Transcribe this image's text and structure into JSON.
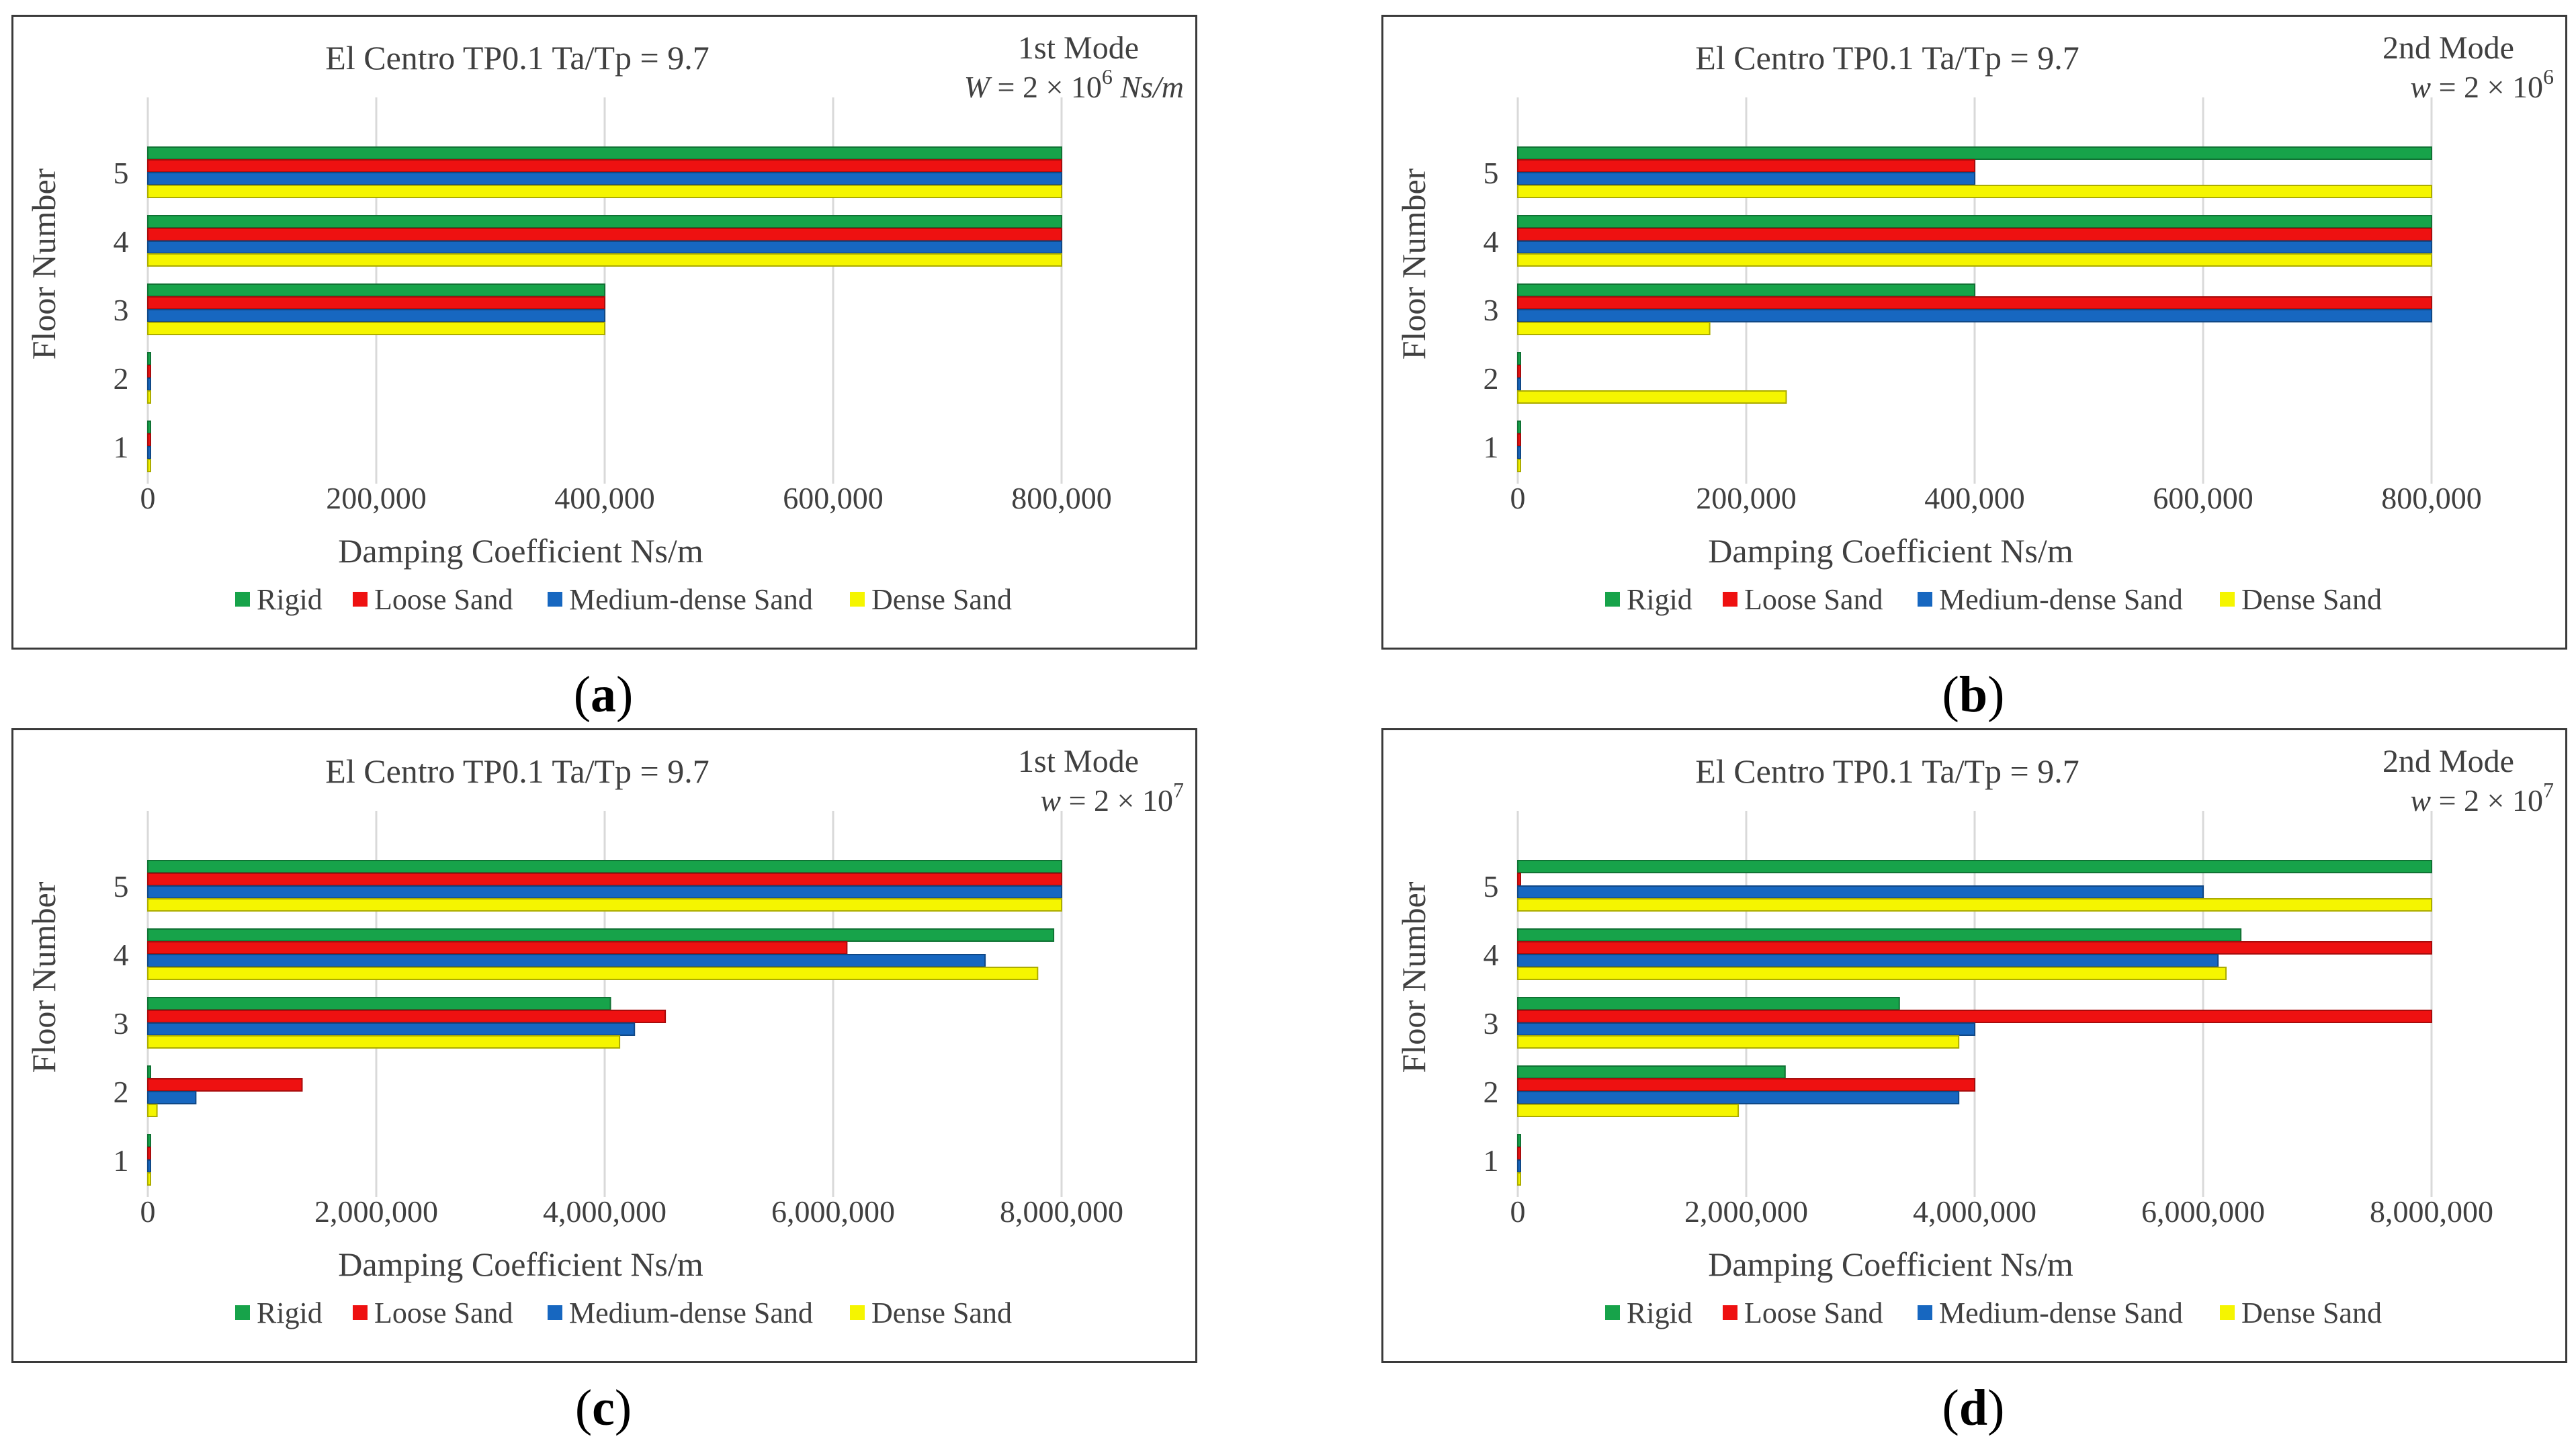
{
  "figure": {
    "captions": [
      "a",
      "b",
      "c",
      "d"
    ]
  },
  "colors": {
    "Rigid": "#17a34a",
    "Loose Sand": "#ee1111",
    "Medium-dense Sand": "#1767c0",
    "Dense Sand": "#f5f500",
    "grid": "#d9d9d9",
    "text": "#404040"
  },
  "chart_data": [
    {
      "type": "bar",
      "orientation": "horizontal",
      "title": "El Centro TP0.1  Ta/Tp = 9.7",
      "mode_label": "1st Mode",
      "mode_formula": "W = 2 × 10^6 Ns/m",
      "formula_parts": {
        "var": "W",
        "base": " = 2 × 10",
        "exp": "6",
        "unit": " Ns/m"
      },
      "xlabel": "Damping Coefficient Ns/m",
      "ylabel": "Floor Number",
      "categories": [
        "1",
        "2",
        "3",
        "4",
        "5"
      ],
      "xlim": [
        0,
        800000
      ],
      "xticks": [
        0,
        200000,
        400000,
        600000,
        800000
      ],
      "xtick_labels": [
        "0",
        "200,000",
        "400,000",
        "600,000",
        "800,000"
      ],
      "series": [
        {
          "name": "Rigid",
          "values": [
            2000,
            2000,
            400000,
            800000,
            800000
          ]
        },
        {
          "name": "Loose Sand",
          "values": [
            2000,
            2000,
            400000,
            800000,
            800000
          ]
        },
        {
          "name": "Medium-dense Sand",
          "values": [
            2000,
            2000,
            400000,
            800000,
            800000
          ]
        },
        {
          "name": "Dense Sand",
          "values": [
            2000,
            2000,
            400000,
            800000,
            800000
          ]
        }
      ],
      "legend": [
        "Rigid",
        "Loose Sand",
        "Medium-dense Sand",
        "Dense Sand"
      ]
    },
    {
      "type": "bar",
      "orientation": "horizontal",
      "title": "El Centro TP0.1  Ta/Tp = 9.7",
      "mode_label": "2nd Mode",
      "mode_formula": "w = 2 × 10^6",
      "formula_parts": {
        "var": "w",
        "base": " = 2 × 10",
        "exp": "6",
        "unit": ""
      },
      "xlabel": "Damping Coefficient Ns/m",
      "ylabel": "Floor Number",
      "categories": [
        "1",
        "2",
        "3",
        "4",
        "5"
      ],
      "xlim": [
        0,
        800000
      ],
      "xticks": [
        0,
        200000,
        400000,
        600000,
        800000
      ],
      "xtick_labels": [
        "0",
        "200,000",
        "400,000",
        "600,000",
        "800,000"
      ],
      "series": [
        {
          "name": "Rigid",
          "values": [
            2000,
            2000,
            400000,
            800000,
            800000
          ]
        },
        {
          "name": "Loose Sand",
          "values": [
            2000,
            2000,
            800000,
            800000,
            400000
          ]
        },
        {
          "name": "Medium-dense Sand",
          "values": [
            2000,
            2000,
            800000,
            800000,
            400000
          ]
        },
        {
          "name": "Dense Sand",
          "values": [
            2000,
            235000,
            168000,
            800000,
            800000
          ]
        }
      ],
      "legend": [
        "Rigid",
        "Loose Sand",
        "Medium-dense Sand",
        "Dense Sand"
      ]
    },
    {
      "type": "bar",
      "orientation": "horizontal",
      "title": "El Centro TP0.1  Ta/Tp = 9.7",
      "mode_label": "1st Mode",
      "mode_formula": "w = 2 × 10^7",
      "formula_parts": {
        "var": "w",
        "base": " = 2 × 10",
        "exp": "7",
        "unit": ""
      },
      "xlabel": "Damping Coefficient Ns/m",
      "ylabel": "Floor Number",
      "categories": [
        "1",
        "2",
        "3",
        "4",
        "5"
      ],
      "xlim": [
        0,
        8000000
      ],
      "xticks": [
        0,
        2000000,
        4000000,
        6000000,
        8000000
      ],
      "xtick_labels": [
        "0",
        "2,000,000",
        "4,000,000",
        "6,000,000",
        "8,000,000"
      ],
      "series": [
        {
          "name": "Rigid",
          "values": [
            20000,
            20000,
            4050000,
            7930000,
            8000000
          ]
        },
        {
          "name": "Loose Sand",
          "values": [
            20000,
            1350000,
            4530000,
            6120000,
            8000000
          ]
        },
        {
          "name": "Medium-dense Sand",
          "values": [
            20000,
            420000,
            4260000,
            7330000,
            8000000
          ]
        },
        {
          "name": "Dense Sand",
          "values": [
            20000,
            80000,
            4130000,
            7790000,
            8000000
          ]
        }
      ],
      "legend": [
        "Rigid",
        "Loose Sand",
        "Medium-dense Sand",
        "Dense Sand"
      ]
    },
    {
      "type": "bar",
      "orientation": "horizontal",
      "title": "El Centro TP0.1  Ta/Tp = 9.7",
      "mode_label": "2nd Mode",
      "mode_formula": "w = 2 × 10^7",
      "formula_parts": {
        "var": "w",
        "base": " = 2 × 10",
        "exp": "7",
        "unit": ""
      },
      "xlabel": "Damping Coefficient Ns/m",
      "ylabel": "Floor Number",
      "categories": [
        "1",
        "2",
        "3",
        "4",
        "5"
      ],
      "xlim": [
        0,
        8000000
      ],
      "xticks": [
        0,
        2000000,
        4000000,
        6000000,
        8000000
      ],
      "xtick_labels": [
        "0",
        "2,000,000",
        "4,000,000",
        "6,000,000",
        "8,000,000"
      ],
      "series": [
        {
          "name": "Rigid",
          "values": [
            20000,
            2340000,
            3340000,
            6330000,
            8000000
          ]
        },
        {
          "name": "Loose Sand",
          "values": [
            20000,
            4000000,
            8000000,
            8000000,
            20000
          ]
        },
        {
          "name": "Medium-dense Sand",
          "values": [
            20000,
            3860000,
            4000000,
            6130000,
            6000000
          ]
        },
        {
          "name": "Dense Sand",
          "values": [
            20000,
            1930000,
            3860000,
            6200000,
            8000000
          ]
        }
      ],
      "legend": [
        "Rigid",
        "Loose Sand",
        "Medium-dense Sand",
        "Dense Sand"
      ]
    }
  ]
}
